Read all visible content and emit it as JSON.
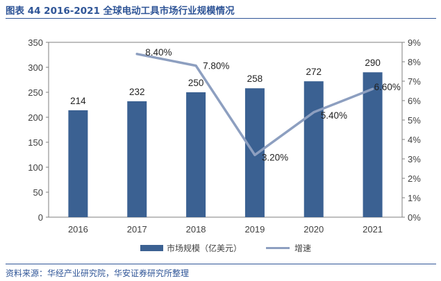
{
  "header": {
    "title": "图表 44 2016-2021 全球电动工具市场行业规模情况"
  },
  "footer": {
    "source": "资料来源：华经产业研究院，华安证券研究所整理"
  },
  "colors": {
    "bar": "#3b6192",
    "line": "#8d9fc0",
    "accent": "#2f5597"
  },
  "chart_data": {
    "type": "bar",
    "categories": [
      "2016",
      "2017",
      "2018",
      "2019",
      "2020",
      "2021"
    ],
    "series": [
      {
        "name": "市场规模（亿美元）",
        "type": "bar",
        "axis": "left",
        "values": [
          214,
          232,
          250,
          258,
          272,
          290
        ],
        "labels": [
          "214",
          "232",
          "250",
          "258",
          "272",
          "290"
        ]
      },
      {
        "name": "增速",
        "type": "line",
        "axis": "right",
        "values": [
          null,
          8.4,
          7.8,
          3.2,
          5.4,
          6.6
        ],
        "labels": [
          "",
          "8.40%",
          "7.80%",
          "3.20%",
          "5.40%",
          "6.60%"
        ]
      }
    ],
    "y_left": {
      "range": [
        0,
        350
      ],
      "ticks": [
        "0",
        "50",
        "100",
        "150",
        "200",
        "250",
        "300",
        "350"
      ]
    },
    "y_right": {
      "range": [
        0,
        9
      ],
      "ticks": [
        "0%",
        "1%",
        "2%",
        "3%",
        "4%",
        "5%",
        "6%",
        "7%",
        "8%",
        "9%"
      ]
    },
    "grid": false,
    "legend": "bottom"
  }
}
